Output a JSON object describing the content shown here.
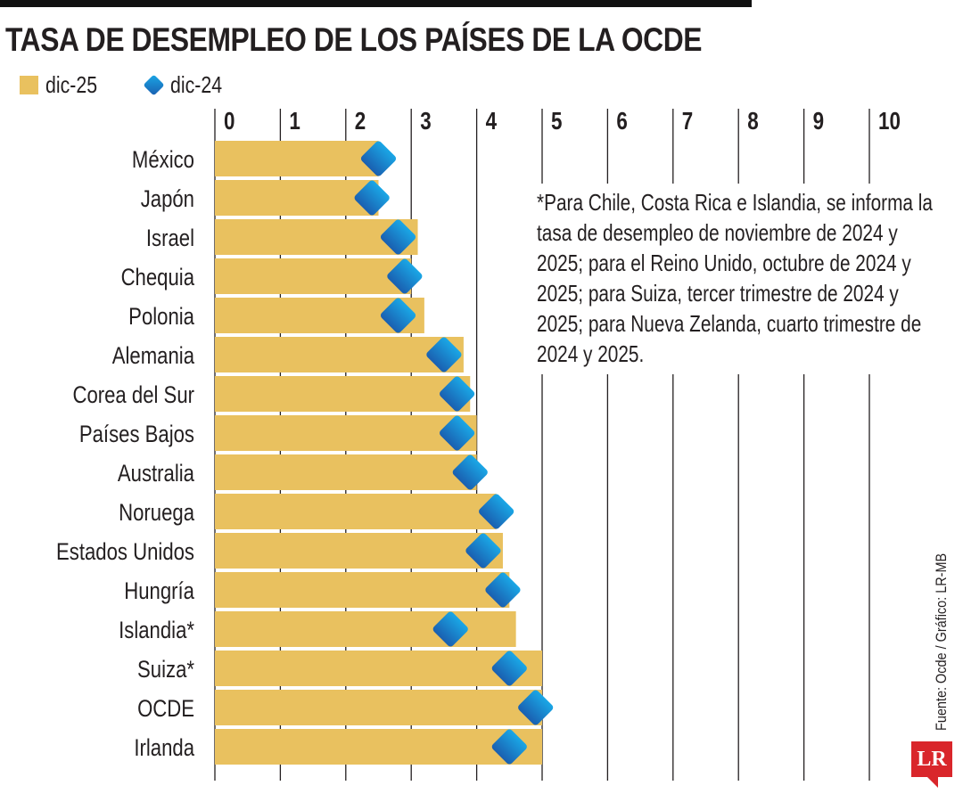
{
  "title": "TASA DE DESEMPLEO DE LOS PAÍSES DE LA OCDE",
  "legend": {
    "series_a": "dic-25",
    "series_b": "dic-24"
  },
  "note": "*Para Chile, Costa Rica e Islandia, se informa la tasa de desempleo de noviembre de 2024 y 2025; para el Reino Unido, octubre de 2024 y 2025; para Suiza, tercer trimestre de 2024 y 2025; para Nueva Zelanda, cuarto trimestre de 2024 y 2025.",
  "source": "Fuente: Ocde / Gráfico: LR-MB",
  "logo": "LR",
  "colors": {
    "bar": "#e9c15f",
    "diamond_top": "#1aa7e6",
    "diamond_bottom": "#1a5fb0",
    "grid": "#231f20"
  },
  "chart_data": {
    "type": "bar",
    "orientation": "horizontal",
    "title": "TASA DE DESEMPLEO DE LOS PAÍSES DE LA OCDE",
    "xlim": [
      0,
      10
    ],
    "xticks": [
      "0",
      "1",
      "2",
      "3",
      "4",
      "5",
      "6",
      "7",
      "8",
      "9",
      "10"
    ],
    "grid": true,
    "legend_position": "top-left",
    "categories": [
      "México",
      "Japón",
      "Israel",
      "Chequia",
      "Polonia",
      "Alemania",
      "Corea del Sur",
      "Países Bajos",
      "Australia",
      "Noruega",
      "Estados Unidos",
      "Hungría",
      "Islandia*",
      "Suiza*",
      "OCDE",
      "Irlanda"
    ],
    "series": [
      {
        "name": "dic-25",
        "mark": "bar",
        "values": [
          2.5,
          2.5,
          3.1,
          3.0,
          3.2,
          3.8,
          3.9,
          4.0,
          4.0,
          4.3,
          4.4,
          4.5,
          4.6,
          5.0,
          5.0,
          5.0
        ]
      },
      {
        "name": "dic-24",
        "mark": "diamond",
        "values": [
          2.5,
          2.4,
          2.8,
          2.9,
          2.8,
          3.5,
          3.7,
          3.7,
          3.9,
          4.3,
          4.1,
          4.4,
          3.6,
          4.5,
          4.9,
          4.5
        ]
      }
    ]
  }
}
